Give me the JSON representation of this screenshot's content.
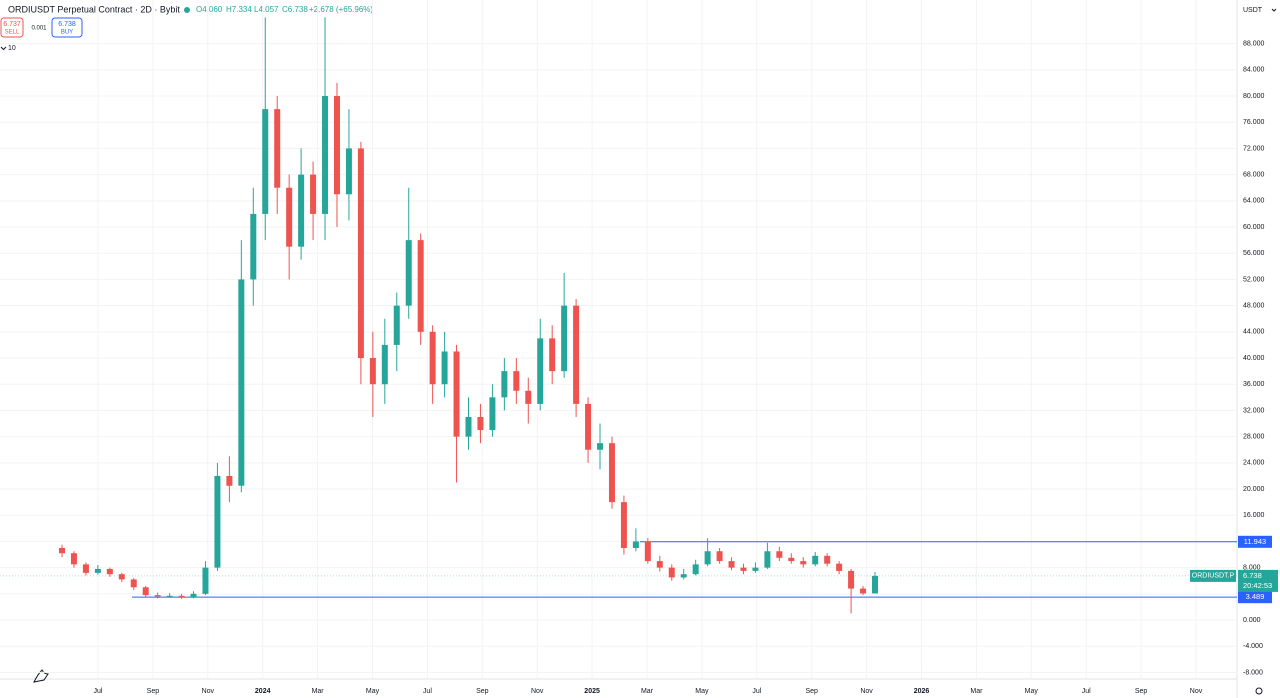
{
  "header": {
    "symbol": "ORDIUSDT Perpetual Contract · 2D · Bybit",
    "open": "O4.060",
    "high": "H7.334",
    "low": "L4.057",
    "close": "C6.738",
    "change": "+2.678 (+65.96%)",
    "sell_price": "6.737",
    "sell_label": "SELL",
    "spread": "0.001",
    "buy_price": "6.738",
    "buy_label": "BUY",
    "indicator_count": "10",
    "currency": "USDT"
  },
  "chart_data": {
    "type": "candlestick",
    "categories": [
      null,
      null,
      null,
      null,
      null,
      null,
      null,
      null,
      null,
      null,
      null,
      null,
      null,
      null,
      null,
      null,
      null,
      null,
      null,
      null,
      null,
      null,
      null,
      null,
      null,
      null,
      null,
      null,
      null,
      null,
      null,
      null,
      null,
      null,
      null,
      null,
      null,
      null,
      null,
      null,
      null,
      null,
      null,
      null,
      null,
      null,
      null,
      null,
      null,
      null,
      null,
      null,
      null,
      null,
      null,
      null,
      null,
      null,
      null,
      null,
      null,
      null,
      null,
      null,
      null,
      null,
      null,
      null,
      null
    ],
    "open": [
      11,
      10.2,
      8.5,
      7.2,
      7.8,
      7.0,
      6.2,
      5.0,
      3.8,
      3.6,
      3.7,
      3.5,
      4.0,
      8.0,
      22,
      20.5,
      52,
      62,
      78,
      66,
      57,
      68,
      62,
      80,
      65,
      72,
      40,
      36,
      42,
      48,
      58,
      44,
      36,
      41,
      28,
      31,
      29,
      34,
      38,
      35,
      33,
      43,
      38,
      48,
      33,
      26,
      27,
      18,
      11,
      12,
      9,
      8,
      6.5,
      7,
      8.5,
      10.5,
      9,
      8,
      7.5,
      8,
      10.5,
      9.5,
      9,
      8.5,
      9.8,
      8.6,
      7.5,
      4.8,
      4.06
    ],
    "high": [
      11.5,
      10.5,
      8.8,
      8.4,
      8.0,
      7.2,
      6.4,
      5.2,
      4.2,
      4.1,
      4.0,
      4.4,
      9.0,
      24,
      25,
      58,
      66,
      92,
      80,
      68,
      72,
      70,
      92,
      82,
      78,
      73,
      44,
      46,
      50,
      66,
      59,
      45,
      44,
      42,
      34,
      33,
      36,
      40,
      40,
      37,
      46,
      45,
      53,
      49,
      34,
      30,
      28,
      19,
      14,
      12.5,
      9.8,
      8.5,
      7.8,
      9.2,
      12.5,
      11,
      9.6,
      8.6,
      8.8,
      11.8,
      11.2,
      10.2,
      9.6,
      10.4,
      10.2,
      9.0,
      7.8,
      5.2,
      7.334
    ],
    "low": [
      9.6,
      8.0,
      6.8,
      6.9,
      6.6,
      5.8,
      4.6,
      3.5,
      3.3,
      3.4,
      3.2,
      3.3,
      3.8,
      7.5,
      18,
      19.5,
      48,
      58,
      62,
      52,
      55,
      58,
      58,
      60,
      61,
      36,
      31,
      33,
      38,
      46,
      42,
      33,
      34,
      21,
      26,
      27,
      28,
      32,
      33,
      30,
      32,
      36,
      37,
      31,
      24,
      23,
      17,
      10,
      10.5,
      8.6,
      7.4,
      6.0,
      6.2,
      6.8,
      8.2,
      8.6,
      7.6,
      7.0,
      7.2,
      7.8,
      9.0,
      8.6,
      8.0,
      8.2,
      8.2,
      7.0,
      1.0,
      3.8,
      4.057
    ],
    "close": [
      10.2,
      8.5,
      7.2,
      7.8,
      7.0,
      6.2,
      5.0,
      3.8,
      3.6,
      3.7,
      3.5,
      4.0,
      8.0,
      22,
      20.5,
      52,
      62,
      78,
      66,
      57,
      68,
      62,
      80,
      65,
      72,
      40,
      36,
      42,
      48,
      58,
      44,
      36,
      41,
      28,
      31,
      29,
      34,
      38,
      35,
      33,
      43,
      38,
      48,
      33,
      26,
      27,
      18,
      11,
      12,
      9,
      8,
      6.5,
      7,
      8.5,
      10.5,
      9,
      8,
      7.5,
      8,
      10.5,
      9.5,
      9,
      8.5,
      9.8,
      8.6,
      7.5,
      4.8,
      4.06,
      6.738
    ],
    "up_color": "#26a69a",
    "down_color": "#ef5350",
    "xticks": [
      "Jul",
      "Sep",
      "Nov",
      "2024",
      "Mar",
      "May",
      "Jul",
      "Sep",
      "Nov",
      "2025",
      "Mar",
      "May",
      "Jul",
      "Sep",
      "Nov",
      "2026",
      "Mar",
      "May",
      "Jul",
      "Sep",
      "Nov"
    ],
    "ylim": [
      -8.85,
      94.66
    ],
    "yticks": [
      {
        "value": -8,
        "label": "-8.000"
      },
      {
        "value": -4,
        "label": "-4.000"
      },
      {
        "value": 0,
        "label": "0.000"
      },
      {
        "value": 4,
        "label": "4.000"
      },
      {
        "value": 8,
        "label": "8.000"
      },
      {
        "value": 12,
        "label": "12.000"
      },
      {
        "value": 16,
        "label": "16.000"
      },
      {
        "value": 20,
        "label": "20.000"
      },
      {
        "value": 24,
        "label": "24.000"
      },
      {
        "value": 28,
        "label": "28.000"
      },
      {
        "value": 32,
        "label": "32.000"
      },
      {
        "value": 36,
        "label": "36.000"
      },
      {
        "value": 40,
        "label": "40.000"
      },
      {
        "value": 44,
        "label": "44.000"
      },
      {
        "value": 48,
        "label": "48.000"
      },
      {
        "value": 52,
        "label": "52.000"
      },
      {
        "value": 56,
        "label": "56.000"
      },
      {
        "value": 60,
        "label": "60.000"
      },
      {
        "value": 64,
        "label": "64.000"
      },
      {
        "value": 68,
        "label": "68.000"
      },
      {
        "value": 72,
        "label": "72.000"
      },
      {
        "value": 76,
        "label": "76.000"
      },
      {
        "value": 80,
        "label": "80.000"
      },
      {
        "value": 84,
        "label": "84.000"
      },
      {
        "value": 88,
        "label": "88.000"
      }
    ],
    "grid": true,
    "hlines": [
      11.943,
      3.489
    ],
    "hline_color": "#2962ff",
    "last_price": 6.738,
    "symbol_tag": "ORDIUSDT.P",
    "countdown": "20:42:53"
  }
}
